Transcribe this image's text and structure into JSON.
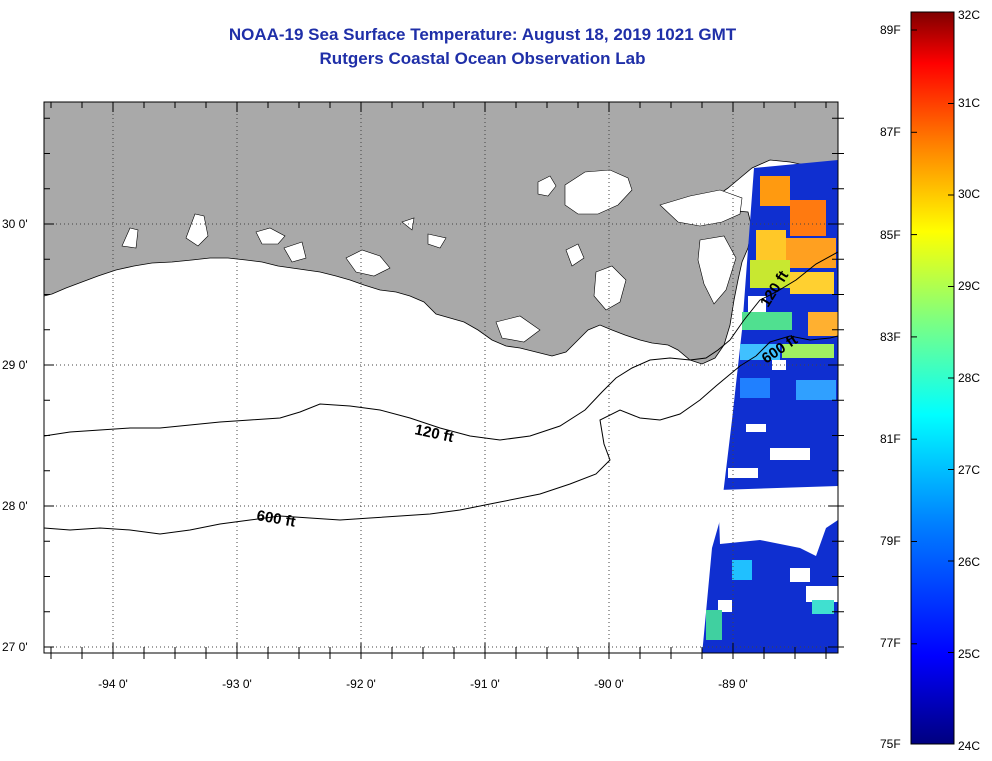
{
  "header": {
    "title": "NOAA-19 Sea Surface Temperature:  August 18, 2019 1021 GMT",
    "subtitle": "Rutgers Coastal Ocean Observation Lab"
  },
  "map": {
    "lat_labels": [
      "30 0'",
      "29 0'",
      "28 0'",
      "27 0'"
    ],
    "lon_labels": [
      "-94 0'",
      "-93 0'",
      "-92 0'",
      "-91 0'",
      "-90 0'",
      "-89 0'"
    ],
    "contour_labels": {
      "c120_west": "120 ft",
      "c600_west": "600 ft",
      "c120_east": "120 ft",
      "c600_east": "600 ft"
    },
    "colors": {
      "land": "#a9a9a9",
      "water": "#ffffff",
      "contour": "#000000",
      "grid": "#444444"
    }
  },
  "colorbar": {
    "top_celsius": "32C",
    "bottom_celsius": "24C",
    "top_fahrenheit": "89F",
    "bottom_fahrenheit": "75F",
    "celsius_labels": [
      "31C",
      "30C",
      "29C",
      "28C",
      "27C",
      "26C",
      "25C"
    ],
    "fahrenheit_labels": [
      "87F",
      "85F",
      "83F",
      "81F",
      "79F",
      "77F"
    ],
    "stops": [
      "#00007f",
      "#0000ff",
      "#007fff",
      "#00ffff",
      "#7fff7f",
      "#ffff00",
      "#ff7f00",
      "#ff0000",
      "#7f0000"
    ]
  }
}
